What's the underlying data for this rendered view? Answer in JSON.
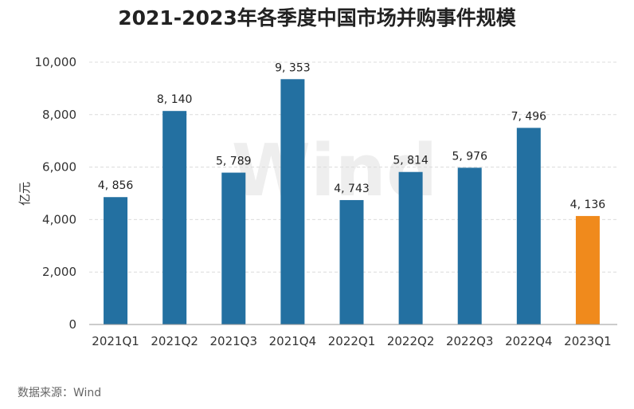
{
  "chart_data": {
    "type": "bar",
    "title": "2021-2023年各季度中国市场并购事件规模",
    "xlabel": "",
    "ylabel": "亿元",
    "ylim": [
      0,
      10000
    ],
    "yticks": [
      0,
      2000,
      4000,
      6000,
      8000,
      10000
    ],
    "ytick_labels": [
      "0",
      "2,000",
      "4,000",
      "6,000",
      "8,000",
      "10,000"
    ],
    "categories": [
      "2021Q1",
      "2021Q2",
      "2021Q3",
      "2021Q4",
      "2022Q1",
      "2022Q2",
      "2022Q3",
      "2022Q4",
      "2023Q1"
    ],
    "values": [
      4856,
      8140,
      5789,
      9353,
      4743,
      5814,
      5976,
      7496,
      4136
    ],
    "data_labels": [
      "4, 856",
      "8, 140",
      "5, 789",
      "9, 353",
      "4, 743",
      "5, 814",
      "5, 976",
      "7, 496",
      "4, 136"
    ],
    "colors": [
      "#2370a1",
      "#2370a1",
      "#2370a1",
      "#2370a1",
      "#2370a1",
      "#2370a1",
      "#2370a1",
      "#2370a1",
      "#f08a1c"
    ],
    "grid": true
  },
  "source": "数据来源：Wind",
  "watermark": "Wind"
}
